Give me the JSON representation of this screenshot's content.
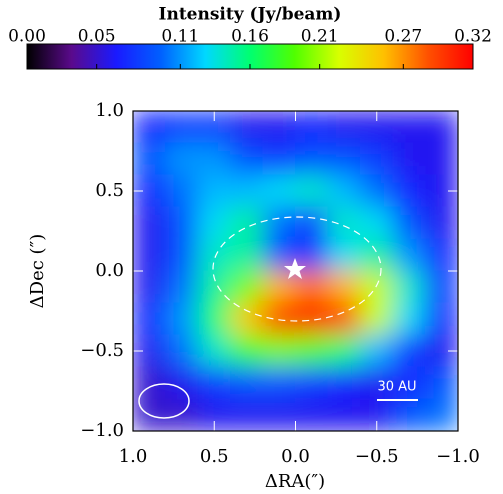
{
  "chart_data": {
    "type": "heatmap",
    "title": "Intensity (Jy/beam)",
    "xlabel": "ΔRA(″)",
    "ylabel": "ΔDec (″)",
    "xlim": [
      1.0,
      -1.0
    ],
    "ylim": [
      -1.0,
      1.0
    ],
    "xticks": [
      {
        "value": 1.0,
        "label": "1.0"
      },
      {
        "value": 0.5,
        "label": "0.5"
      },
      {
        "value": 0.0,
        "label": "0.0"
      },
      {
        "value": -0.5,
        "label": "−0.5"
      },
      {
        "value": -1.0,
        "label": "−1.0"
      }
    ],
    "yticks": [
      {
        "value": 1.0,
        "label": "1.0"
      },
      {
        "value": 0.5,
        "label": "0.5"
      },
      {
        "value": 0.0,
        "label": "0.0"
      },
      {
        "value": -0.5,
        "label": "−0.5"
      },
      {
        "value": -1.0,
        "label": "−1.0"
      }
    ],
    "clim": [
      0,
      0.32
    ],
    "cticks": [
      {
        "value": 0,
        "label": "0.00"
      },
      0.05,
      0.11,
      0.16,
      0.21,
      0.27,
      0.32
    ],
    "colormap": [
      "#000000",
      "#5a0a8c",
      "#1a1aff",
      "#0060ff",
      "#00d8ff",
      "#00ff70",
      "#50ff00",
      "#d8ff00",
      "#ffc000",
      "#ff5000",
      "#ff0000"
    ],
    "x": [
      0.9,
      0.7,
      0.5,
      0.3,
      0.1,
      -0.1,
      -0.3,
      -0.5,
      -0.7,
      -0.9
    ],
    "y": [
      0.9,
      0.7,
      0.5,
      0.3,
      0.1,
      -0.1,
      -0.3,
      -0.5,
      -0.7,
      -0.9
    ],
    "z": [
      [
        0.07,
        0.08,
        0.08,
        0.06,
        0.06,
        0.07,
        0.06,
        0.06,
        0.06,
        0.06
      ],
      [
        0.09,
        0.11,
        0.11,
        0.09,
        0.08,
        0.09,
        0.09,
        0.08,
        0.06,
        0.06
      ],
      [
        0.07,
        0.1,
        0.12,
        0.12,
        0.13,
        0.14,
        0.12,
        0.1,
        0.07,
        0.06
      ],
      [
        0.06,
        0.09,
        0.13,
        0.15,
        0.1,
        0.08,
        0.14,
        0.13,
        0.09,
        0.06
      ],
      [
        0.06,
        0.09,
        0.14,
        0.15,
        0.09,
        0.07,
        0.13,
        0.15,
        0.11,
        0.07
      ],
      [
        0.06,
        0.1,
        0.15,
        0.2,
        0.26,
        0.28,
        0.26,
        0.22,
        0.14,
        0.08
      ],
      [
        0.07,
        0.11,
        0.16,
        0.25,
        0.3,
        0.31,
        0.29,
        0.22,
        0.13,
        0.07
      ],
      [
        0.06,
        0.1,
        0.14,
        0.18,
        0.2,
        0.19,
        0.16,
        0.12,
        0.08,
        0.06
      ],
      [
        0.05,
        0.06,
        0.08,
        0.09,
        0.09,
        0.08,
        0.07,
        0.06,
        0.07,
        0.09
      ],
      [
        0.05,
        0.05,
        0.06,
        0.06,
        0.06,
        0.06,
        0.06,
        0.06,
        0.09,
        0.1
      ]
    ],
    "annotation": "30 AU"
  }
}
